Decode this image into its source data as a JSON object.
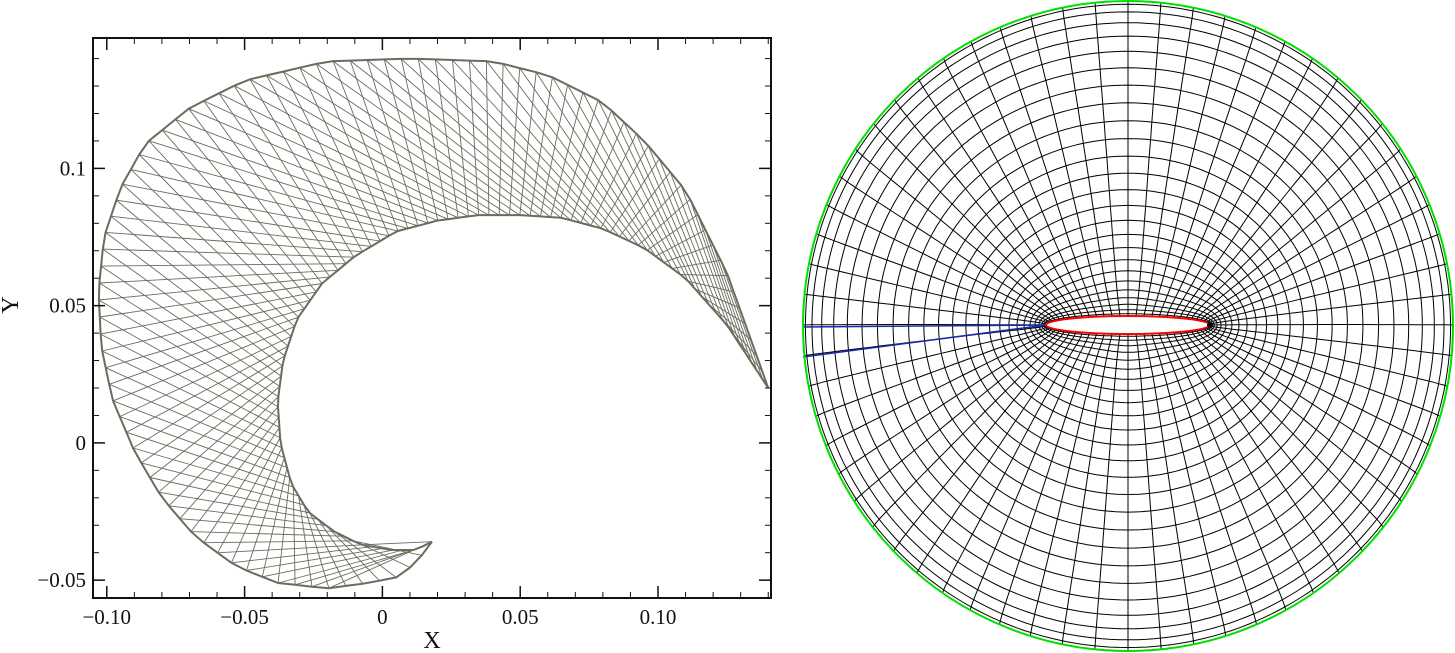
{
  "chart_data": [
    {
      "type": "mesh",
      "xlabel": "X",
      "ylabel": "Y",
      "xlim": [
        -0.105,
        0.141
      ],
      "ylim": [
        -0.0565,
        0.1475
      ],
      "xticks": [
        -0.1,
        -0.05,
        0,
        0.05,
        0.1
      ],
      "xtick_labels": [
        "−0.10",
        "−0.05",
        "0",
        "0.05",
        "0.10"
      ],
      "yticks": [
        -0.05,
        0,
        0.05,
        0.1
      ],
      "ytick_labels": [
        "−0.05",
        "0",
        "0.05",
        "0.1"
      ],
      "grid": false,
      "outer_boundary": [
        [
          0.14,
          0.02
        ],
        [
          0.125,
          0.062
        ],
        [
          0.11,
          0.092
        ],
        [
          0.095,
          0.11
        ],
        [
          0.08,
          0.124
        ],
        [
          0.06,
          0.134
        ],
        [
          0.04,
          0.139
        ],
        [
          0.01,
          0.14
        ],
        [
          -0.02,
          0.139
        ],
        [
          -0.05,
          0.132
        ],
        [
          -0.07,
          0.122
        ],
        [
          -0.086,
          0.109
        ],
        [
          -0.095,
          0.093
        ],
        [
          -0.101,
          0.075
        ],
        [
          -0.103,
          0.055
        ],
        [
          -0.102,
          0.035
        ],
        [
          -0.098,
          0.016
        ],
        [
          -0.09,
          -0.003
        ],
        [
          -0.08,
          -0.02
        ],
        [
          -0.068,
          -0.034
        ],
        [
          -0.053,
          -0.045
        ],
        [
          -0.038,
          -0.051
        ],
        [
          -0.02,
          -0.053
        ],
        [
          -0.005,
          -0.051
        ],
        [
          0.005,
          -0.049
        ],
        [
          0.012,
          -0.044
        ],
        [
          0.018,
          -0.036
        ]
      ],
      "inner_boundary": [
        [
          0.14,
          0.02
        ],
        [
          0.125,
          0.043
        ],
        [
          0.11,
          0.06
        ],
        [
          0.095,
          0.071
        ],
        [
          0.08,
          0.078
        ],
        [
          0.065,
          0.082
        ],
        [
          0.05,
          0.083
        ],
        [
          0.035,
          0.083
        ],
        [
          0.02,
          0.081
        ],
        [
          0.005,
          0.077
        ],
        [
          -0.01,
          0.068
        ],
        [
          -0.022,
          0.058
        ],
        [
          -0.031,
          0.045
        ],
        [
          -0.036,
          0.03
        ],
        [
          -0.038,
          0.015
        ],
        [
          -0.037,
          0.0
        ],
        [
          -0.033,
          -0.015
        ],
        [
          -0.027,
          -0.025
        ],
        [
          -0.018,
          -0.032
        ],
        [
          -0.008,
          -0.037
        ],
        [
          0.003,
          -0.039
        ],
        [
          0.012,
          -0.039
        ],
        [
          0.018,
          -0.036
        ]
      ],
      "line_color": "#6b6b5e"
    },
    {
      "type": "mesh",
      "shape": "o-grid",
      "radial_lines": 64,
      "rings": 26,
      "outer_boundary_color": "#00e000",
      "airfoil_color": "#ff0000",
      "wake_cut_color": "#1a2aa8",
      "grid_color": "#000000"
    }
  ]
}
